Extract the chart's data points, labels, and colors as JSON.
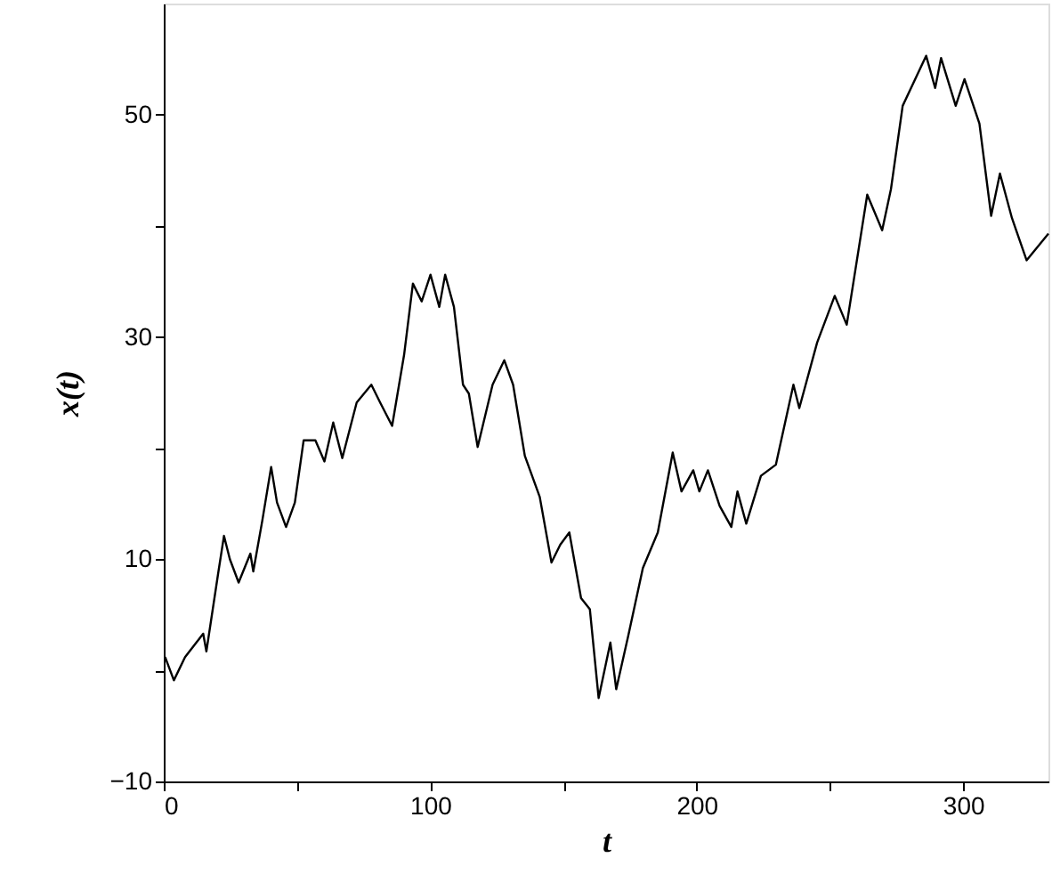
{
  "chart_data": {
    "type": "line",
    "xlabel": "t",
    "ylabel": "x(t)",
    "xlim": [
      0,
      332
    ],
    "ylim": [
      -10,
      60
    ],
    "xticks": [
      0,
      {
        "value": 50,
        "label": null
      },
      100,
      {
        "value": 150,
        "label": null
      },
      200,
      {
        "value": 250,
        "label": null
      },
      300
    ],
    "yticks": [
      -10,
      {
        "value": 0,
        "label": null
      },
      10,
      {
        "value": 20,
        "label": null
      },
      30,
      {
        "value": 40,
        "label": null
      },
      50
    ],
    "grid": false,
    "marker": "none",
    "line_style": "solid",
    "series": [
      {
        "color": "#000000",
        "x": [
          0.5,
          3.8,
          8,
          14.8,
          16,
          20.4,
          22.6,
          24.8,
          28.1,
          32.5,
          33.6,
          37,
          40.3,
          42.5,
          45.9,
          49.2,
          52.5,
          56.9,
          60.3,
          63.6,
          67,
          72.4,
          77.9,
          81.2,
          85.7,
          90.2,
          93.5,
          96.8,
          100.1,
          103.4,
          105.6,
          108.9,
          112.3,
          114.5,
          117.8,
          123.4,
          127.8,
          131.1,
          135.5,
          141.1,
          145.5,
          148.8,
          152.2,
          156.6,
          159.9,
          163.2,
          167.6,
          169.8,
          174.3,
          179.8,
          185.4,
          191,
          194.3,
          198.7,
          201,
          204.2,
          208.6,
          213,
          215.3,
          218.6,
          224.1,
          229.7,
          236.3,
          238.5,
          245.2,
          251.8,
          256.3,
          264,
          269.6,
          272.9,
          277.3,
          286.1,
          289.5,
          291.7,
          297.2,
          300.5,
          306.1,
          310.5,
          313.8,
          318.3,
          323.8,
          332
        ],
        "values": [
          1.2,
          -0.9,
          1.2,
          3.3,
          1.7,
          8.7,
          12.1,
          10,
          7.9,
          10.5,
          8.9,
          13.5,
          18.3,
          15.1,
          12.9,
          15.1,
          20.7,
          20.7,
          18.8,
          22.3,
          19.1,
          24.1,
          25.7,
          24.1,
          22,
          28.4,
          34.8,
          33.2,
          35.6,
          32.7,
          35.6,
          32.7,
          25.7,
          24.9,
          20.1,
          25.7,
          27.9,
          25.7,
          19.3,
          15.6,
          9.7,
          11.3,
          12.4,
          6.5,
          5.5,
          -2.5,
          2.5,
          -1.7,
          3.1,
          9.2,
          12.4,
          19.6,
          16.1,
          18,
          16.1,
          18,
          14.8,
          12.9,
          16.1,
          13.2,
          17.5,
          18.5,
          25.7,
          23.6,
          29.5,
          33.7,
          31.1,
          42.8,
          39.6,
          43.3,
          50.8,
          55.3,
          52.4,
          55.1,
          50.8,
          53.2,
          49.2,
          40.9,
          44.7,
          40.7,
          36.9,
          39.3
        ]
      }
    ]
  }
}
